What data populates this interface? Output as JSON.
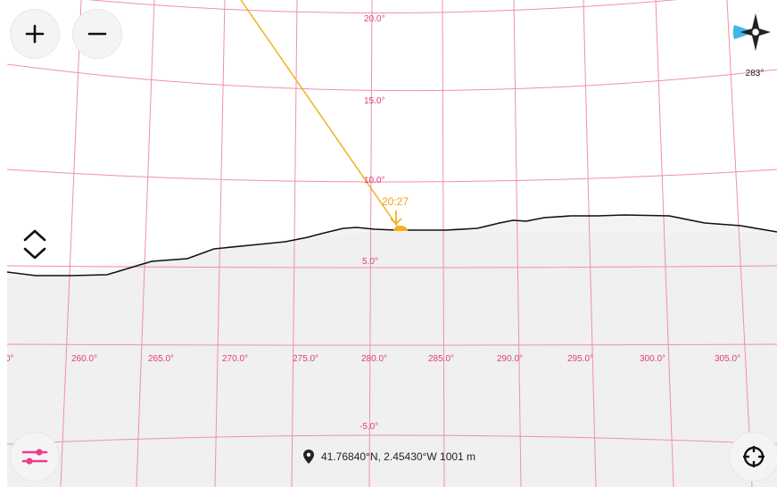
{
  "map": {
    "altitude_labels": [
      "20.0°",
      "15.0°",
      "10.0°",
      "5.0°",
      "-5.0°"
    ],
    "azimuth_labels": [
      "0°",
      "260.0°",
      "265.0°",
      "270.0°",
      "275.0°",
      "280.0°",
      "285.0°",
      "290.0°",
      "295.0°",
      "300.0°",
      "305.0°"
    ],
    "sun_marker_time": "20:27",
    "colors": {
      "grid": "#f08fb0",
      "grid_label": "#e0407a",
      "sun_path": "#f2b01e",
      "horizon": "#111111",
      "sensor_button": "#e83e8c"
    }
  },
  "controls": {
    "zoom_in_icon": "plus-icon",
    "zoom_out_icon": "minus-icon",
    "layers_icon": "sliders-icon",
    "locate_icon": "crosshair-icon",
    "tilt_icon": "chevron-up-down-icon"
  },
  "compass": {
    "heading": "283°"
  },
  "location": {
    "text": "41.76840°N, 2.45430°W 1001 m"
  }
}
